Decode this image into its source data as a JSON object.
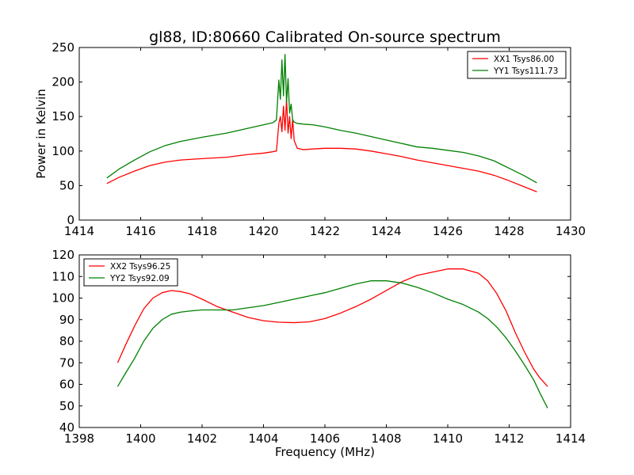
{
  "chart_data": [
    {
      "type": "line",
      "title": "gl88, ID:80660 Calibrated On-source spectrum",
      "xlabel": "",
      "ylabel": "Power in Kelvin",
      "xlim": [
        1414,
        1430
      ],
      "ylim": [
        0,
        250
      ],
      "xticks": [
        1414,
        1416,
        1418,
        1420,
        1422,
        1424,
        1426,
        1428,
        1430
      ],
      "yticks": [
        0,
        50,
        100,
        150,
        200,
        250
      ],
      "grid": false,
      "legend": "top-right",
      "series": [
        {
          "name": "XX1 Tsys86.00",
          "color": "#ff0000",
          "x": [
            1414.9,
            1415.3,
            1415.8,
            1416.3,
            1416.8,
            1417.3,
            1418.0,
            1418.8,
            1419.5,
            1420.0,
            1420.3,
            1420.42,
            1420.5,
            1420.55,
            1420.6,
            1420.65,
            1420.7,
            1420.75,
            1420.8,
            1420.85,
            1420.9,
            1420.95,
            1421.0,
            1421.1,
            1421.3,
            1421.6,
            1422.0,
            1422.5,
            1423.0,
            1423.5,
            1424.0,
            1424.5,
            1425.0,
            1425.5,
            1426.0,
            1426.5,
            1427.0,
            1427.5,
            1428.0,
            1428.5,
            1428.9
          ],
          "y": [
            53,
            62,
            71,
            79,
            84,
            87,
            89,
            91,
            95,
            97,
            99,
            100,
            140,
            150,
            128,
            165,
            130,
            175,
            126,
            150,
            118,
            146,
            115,
            104,
            102,
            103,
            104,
            104,
            103,
            100,
            96,
            92,
            87,
            83,
            79,
            75,
            71,
            65,
            57,
            48,
            41
          ]
        },
        {
          "name": "YY1 Tsys111.73",
          "color": "#008000",
          "x": [
            1414.9,
            1415.3,
            1415.8,
            1416.3,
            1416.8,
            1417.3,
            1418.0,
            1418.8,
            1419.5,
            1420.0,
            1420.3,
            1420.42,
            1420.5,
            1420.55,
            1420.6,
            1420.65,
            1420.7,
            1420.75,
            1420.8,
            1420.85,
            1420.9,
            1420.95,
            1421.0,
            1421.1,
            1421.3,
            1421.6,
            1422.0,
            1422.5,
            1423.0,
            1423.5,
            1424.0,
            1424.5,
            1425.0,
            1425.5,
            1426.0,
            1426.5,
            1427.0,
            1427.5,
            1428.0,
            1428.5,
            1428.9
          ],
          "y": [
            61,
            74,
            87,
            99,
            108,
            114,
            120,
            126,
            133,
            138,
            141,
            145,
            203,
            175,
            232,
            180,
            240,
            170,
            205,
            155,
            168,
            145,
            142,
            140,
            139,
            138,
            135,
            130,
            126,
            121,
            116,
            111,
            106,
            104,
            101,
            98,
            93,
            86,
            75,
            64,
            54
          ]
        }
      ]
    },
    {
      "type": "line",
      "title": "",
      "xlabel": "Frequency (MHz)",
      "ylabel": "",
      "xlim": [
        1398,
        1414
      ],
      "ylim": [
        40,
        120
      ],
      "xticks": [
        1398,
        1400,
        1402,
        1404,
        1406,
        1408,
        1410,
        1412,
        1414
      ],
      "yticks": [
        40,
        50,
        60,
        70,
        80,
        90,
        100,
        110,
        120
      ],
      "grid": false,
      "legend": "top-left",
      "series": [
        {
          "name": "XX2 Tsys96.25",
          "color": "#ff0000",
          "x": [
            1399.25,
            1399.5,
            1399.8,
            1400.1,
            1400.4,
            1400.7,
            1401.0,
            1401.3,
            1401.6,
            1402.0,
            1402.5,
            1403.0,
            1403.5,
            1404.0,
            1404.5,
            1405.0,
            1405.5,
            1406.0,
            1406.5,
            1407.0,
            1407.5,
            1408.0,
            1408.5,
            1409.0,
            1409.5,
            1410.0,
            1410.5,
            1411.0,
            1411.3,
            1411.6,
            1411.9,
            1412.2,
            1412.5,
            1412.8,
            1413.0,
            1413.25
          ],
          "y": [
            70,
            78,
            87,
            95,
            100,
            102.5,
            103.5,
            103,
            102,
            99.5,
            96,
            93.5,
            91,
            89.5,
            88.8,
            88.6,
            89,
            90.5,
            93,
            96,
            99.5,
            103.5,
            107.5,
            110.5,
            112,
            113.5,
            113.5,
            111.5,
            108,
            102,
            94,
            84,
            75,
            67,
            63,
            59
          ]
        },
        {
          "name": "YY2 Tsys92.09",
          "color": "#008000",
          "x": [
            1399.25,
            1399.5,
            1399.8,
            1400.1,
            1400.4,
            1400.7,
            1401.0,
            1401.3,
            1401.6,
            1402.0,
            1402.5,
            1403.0,
            1403.5,
            1404.0,
            1404.5,
            1405.0,
            1405.5,
            1406.0,
            1406.5,
            1407.0,
            1407.5,
            1408.0,
            1408.5,
            1409.0,
            1409.5,
            1410.0,
            1410.5,
            1411.0,
            1411.3,
            1411.6,
            1411.9,
            1412.2,
            1412.5,
            1412.8,
            1413.0,
            1413.25
          ],
          "y": [
            59,
            65,
            72,
            80,
            86,
            90,
            92.5,
            93.5,
            94,
            94.5,
            94.5,
            94.5,
            95.5,
            96.5,
            98,
            99.5,
            101,
            102.5,
            104.5,
            106.5,
            108,
            108,
            107,
            105,
            102.5,
            99.5,
            97,
            93.5,
            90.5,
            86.5,
            81.5,
            75.5,
            69,
            62,
            56,
            49
          ]
        }
      ]
    }
  ]
}
